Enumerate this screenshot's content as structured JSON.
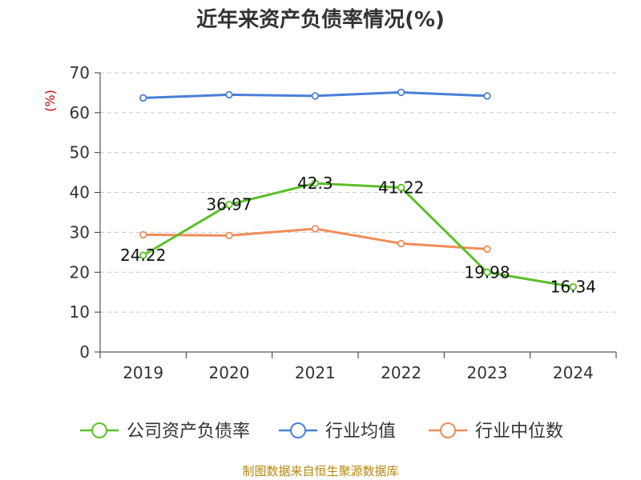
{
  "chart_data": {
    "type": "line",
    "title": "近年来资产负债率情况(%)",
    "ylabel": "(%)",
    "xlabel": "",
    "categories": [
      "2019",
      "2020",
      "2021",
      "2022",
      "2023",
      "2024"
    ],
    "ylim": [
      0,
      70
    ],
    "yticks": [
      "0",
      "10",
      "20",
      "30",
      "40",
      "50",
      "60",
      "70"
    ],
    "grid": true,
    "legend_position": "bottom",
    "series": [
      {
        "name": "公司资产负债率",
        "color": "#5dbf2a",
        "values": [
          24.22,
          36.97,
          42.3,
          41.22,
          19.98,
          16.34
        ],
        "labels": [
          "24.22",
          "36.97",
          "42.3",
          "41.22",
          "19.98",
          "16.34"
        ]
      },
      {
        "name": "行业均值",
        "color": "#4a7fd6",
        "values": [
          63.7,
          64.5,
          64.2,
          65.1,
          64.2,
          null
        ]
      },
      {
        "name": "行业中位数",
        "color": "#f08c5a",
        "values": [
          29.4,
          29.2,
          30.9,
          27.2,
          25.8,
          null
        ]
      }
    ],
    "source": "制图数据来自恒生聚源数据库"
  }
}
